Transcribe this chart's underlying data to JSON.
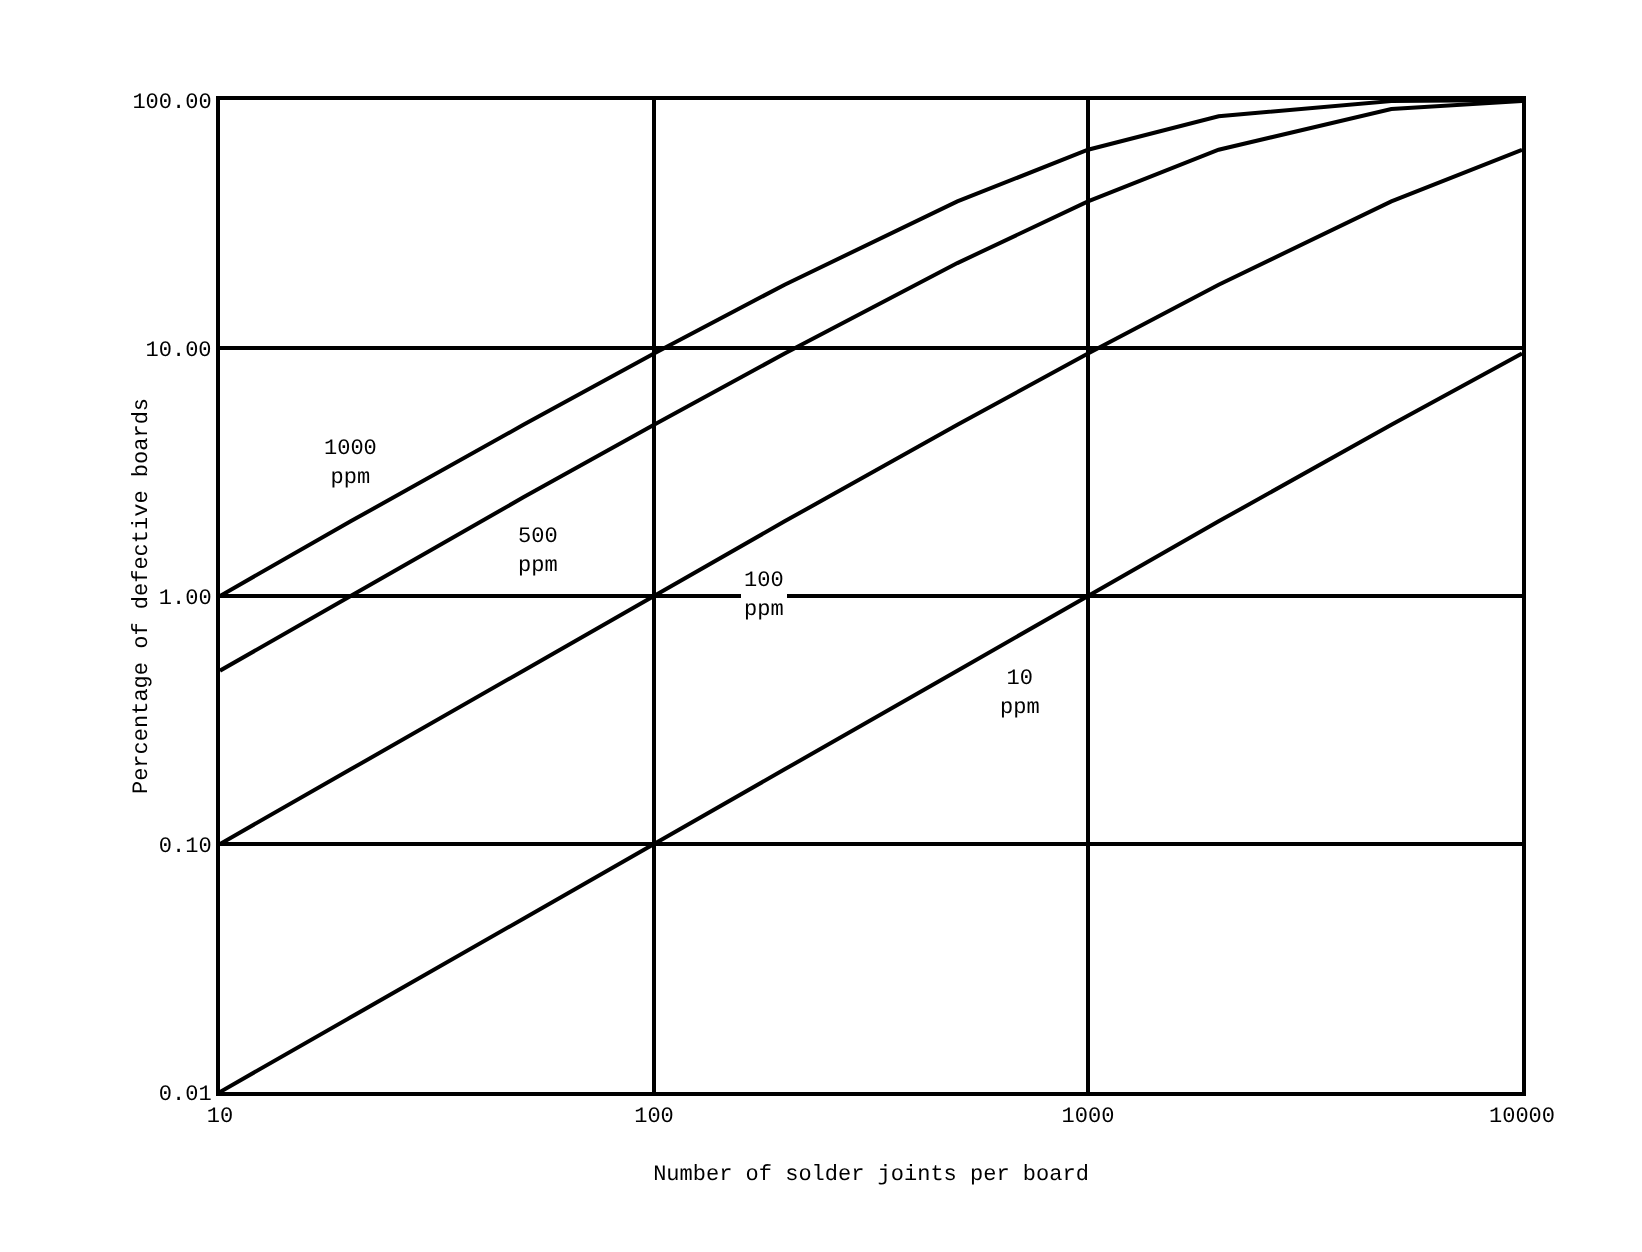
{
  "chart_data": {
    "type": "line",
    "xlabel": "Number of solder joints per board",
    "ylabel": "Percentage of defective boards",
    "x": [
      10,
      20,
      50,
      100,
      200,
      500,
      1000,
      2000,
      5000,
      10000
    ],
    "series": [
      {
        "color": "#000000",
        "values": [
          1.0,
          2.0,
          4.9,
          9.5,
          18,
          39,
          63,
          86,
          99,
          100
        ]
      },
      {
        "color": "#000000",
        "values": [
          0.5,
          1.0,
          2.5,
          4.9,
          9.5,
          22,
          39,
          63,
          92,
          99
        ]
      },
      {
        "color": "#000000",
        "values": [
          0.1,
          0.2,
          0.5,
          1.0,
          2.0,
          4.9,
          9.5,
          18,
          39,
          63
        ]
      },
      {
        "color": "#000000",
        "values": [
          0.01,
          0.02,
          0.05,
          0.1,
          0.2,
          0.5,
          1.0,
          2.0,
          4.9,
          9.5
        ]
      }
    ],
    "log": "xy",
    "xlim": [
      10,
      10000
    ],
    "ylim": [
      0.01,
      100
    ],
    "xticks": [
      10,
      100,
      1000,
      10000
    ],
    "yticks": [
      {
        "value": 0.01,
        "label": "0.01"
      },
      {
        "value": 0.1,
        "label": "0.10"
      },
      {
        "value": 1,
        "label": "1.00"
      },
      {
        "value": 10,
        "label": "10.00"
      },
      {
        "value": 100,
        "label": "100.00"
      }
    ],
    "grid": true,
    "marker": "none",
    "line_style": "solid",
    "annotations": [
      {
        "text": "1000 ppm",
        "x": 20,
        "y": 3.4
      },
      {
        "text": "500 ppm",
        "x": 54,
        "y": 1.5
      },
      {
        "text": "100 ppm",
        "x": 180,
        "y": 1.0
      },
      {
        "text": "10 ppm",
        "x": 700,
        "y": 0.4
      }
    ]
  }
}
